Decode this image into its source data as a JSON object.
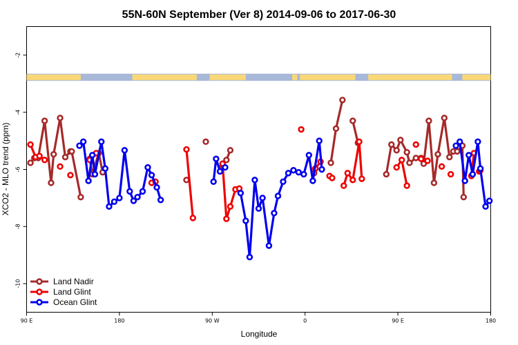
{
  "chart_data": {
    "type": "line",
    "title": "55N-60N September (Ver 8)   2014-09-06 to 2017-06-30",
    "xlabel": "Longitude",
    "ylabel": "XCO2 - MLO trend (ppm)",
    "xlim": [
      90,
      450
    ],
    "ylim": [
      -11,
      -1
    ],
    "x_ticks": [
      {
        "value": 90,
        "label": "90 E"
      },
      {
        "value": 162,
        "label": "180"
      },
      {
        "value": 234,
        "label": "90 W"
      },
      {
        "value": 306,
        "label": "0"
      },
      {
        "value": 378,
        "label": "90 E"
      },
      {
        "value": 450,
        "label": "180"
      }
    ],
    "y_ticks": [
      -2,
      -4,
      -6,
      -8,
      -10
    ],
    "legend_position": "bottom-left",
    "land_mask_band": {
      "y_range": [
        -2.9,
        -2.65
      ],
      "ocean_color": "#a8b8d8",
      "land_color": "#f8d878"
    },
    "series": [
      {
        "name": "Land Nadir",
        "color": "#a52a2a",
        "segments": [
          [
            [
              93,
              -5.77
            ],
            [
              96,
              -5.6
            ],
            [
              99,
              -5.6
            ],
            [
              104,
              -4.3
            ],
            [
              109,
              -6.47
            ],
            [
              111,
              -5.47
            ],
            [
              116,
              -4.2
            ],
            [
              120,
              -5.57
            ],
            [
              124,
              -5.37
            ],
            [
              125,
              -5.37
            ],
            [
              132,
              -6.97
            ]
          ],
          [
            [
              139,
              -5.63
            ],
            [
              141,
              -6.17
            ],
            [
              146,
              -5.43
            ],
            [
              149,
              -6.1
            ]
          ],
          [
            [
              214,
              -6.37
            ]
          ],
          [
            [
              229,
              -5.03
            ]
          ],
          [
            [
              242,
              -5.87
            ],
            [
              245,
              -5.67
            ],
            [
              248,
              -5.33
            ]
          ],
          [
            [
              313,
              -6.13
            ]
          ],
          [
            [
              326,
              -5.77
            ],
            [
              330,
              -4.57
            ],
            [
              335,
              -3.57
            ]
          ],
          [
            [
              343,
              -4.3
            ],
            [
              347,
              -5.07
            ]
          ],
          [
            [
              369,
              -6.17
            ],
            [
              373,
              -5.13
            ],
            [
              377,
              -5.33
            ],
            [
              380,
              -4.97
            ],
            [
              385,
              -5.4
            ],
            [
              387,
              -5.77
            ],
            [
              392,
              -5.6
            ],
            [
              396,
              -5.6
            ],
            [
              398,
              -5.8
            ],
            [
              402,
              -4.3
            ],
            [
              406,
              -6.47
            ],
            [
              409,
              -5.47
            ],
            [
              414,
              -4.2
            ],
            [
              418,
              -5.57
            ],
            [
              421,
              -5.37
            ],
            [
              424,
              -5.37
            ],
            [
              428,
              -5.17
            ],
            [
              429,
              -6.97
            ]
          ]
        ]
      },
      {
        "name": "Land Glint",
        "color": "#ee0000",
        "segments": [
          [
            [
              93,
              -5.13
            ],
            [
              97,
              -5.57
            ],
            [
              100,
              -5.53
            ],
            [
              104,
              -5.67
            ]
          ],
          [
            [
              116,
              -5.9
            ]
          ],
          [
            [
              124,
              -6.2
            ]
          ],
          [
            [
              139,
              -5.67
            ],
            [
              144,
              -5.43
            ]
          ],
          [
            [
              187,
              -6.47
            ],
            [
              190,
              -6.43
            ]
          ],
          [
            [
              214,
              -5.3
            ],
            [
              219,
              -7.7
            ]
          ],
          [
            [
              242,
              -5.8
            ],
            [
              245,
              -7.73
            ],
            [
              248,
              -7.3
            ],
            [
              252,
              -6.7
            ],
            [
              255,
              -6.67
            ]
          ],
          [
            [
              303,
              -4.6
            ]
          ],
          [
            [
              314,
              -5.97
            ],
            [
              318,
              -5.73
            ]
          ],
          [
            [
              325,
              -6.23
            ],
            [
              327,
              -6.3
            ]
          ],
          [
            [
              336,
              -6.57
            ],
            [
              339,
              -6.13
            ],
            [
              343,
              -6.37
            ],
            [
              348,
              -5.03
            ],
            [
              350,
              -6.33
            ]
          ],
          [
            [
              377,
              -5.93
            ],
            [
              381,
              -5.67
            ],
            [
              385,
              -6.57
            ]
          ],
          [
            [
              392,
              -5.13
            ]
          ],
          [
            [
              396,
              -5.63
            ],
            [
              401,
              -5.7
            ]
          ],
          [
            [
              412,
              -5.9
            ]
          ],
          [
            [
              419,
              -6.17
            ]
          ],
          [
            [
              435,
              -6.23
            ],
            [
              437,
              -5.43
            ]
          ],
          [
            [
              441,
              -6.07
            ],
            [
              442,
              -6.03
            ]
          ]
        ]
      },
      {
        "name": "Ocean Glint",
        "color": "#0000ee",
        "segments": [
          [
            [
              131,
              -5.17
            ],
            [
              134,
              -5.03
            ],
            [
              138,
              -6.4
            ],
            [
              141,
              -5.5
            ],
            [
              143,
              -6.17
            ],
            [
              148,
              -5.03
            ],
            [
              151,
              -5.97
            ],
            [
              154,
              -7.3
            ],
            [
              158,
              -7.13
            ],
            [
              162,
              -7.0
            ],
            [
              166,
              -5.33
            ],
            [
              170,
              -6.77
            ],
            [
              173,
              -7.1
            ],
            [
              176,
              -6.97
            ],
            [
              180,
              -6.77
            ],
            [
              184,
              -5.93
            ],
            [
              187,
              -6.2
            ],
            [
              191,
              -6.63
            ],
            [
              194,
              -7.07
            ]
          ],
          [
            [
              235,
              -6.43
            ],
            [
              237,
              -5.63
            ],
            [
              240,
              -6.07
            ],
            [
              244,
              -5.93
            ]
          ],
          [
            [
              256,
              -6.83
            ],
            [
              260,
              -7.8
            ],
            [
              263,
              -9.07
            ],
            [
              267,
              -6.37
            ],
            [
              270,
              -7.37
            ],
            [
              273,
              -7.0
            ],
            [
              278,
              -8.67
            ],
            [
              282,
              -7.53
            ],
            [
              285,
              -6.93
            ],
            [
              289,
              -6.43
            ],
            [
              293,
              -6.13
            ],
            [
              297,
              -6.03
            ],
            [
              301,
              -6.1
            ],
            [
              305,
              -6.17
            ],
            [
              309,
              -5.5
            ],
            [
              312,
              -6.4
            ],
            [
              317,
              -5.0
            ],
            [
              319,
              -6.0
            ]
          ],
          [
            [
              423,
              -5.17
            ],
            [
              426,
              -5.03
            ],
            [
              430,
              -6.4
            ],
            [
              433,
              -5.5
            ],
            [
              436,
              -6.17
            ],
            [
              440,
              -5.03
            ],
            [
              442,
              -5.97
            ],
            [
              446,
              -7.3
            ],
            [
              449,
              -7.1
            ]
          ]
        ]
      }
    ]
  }
}
